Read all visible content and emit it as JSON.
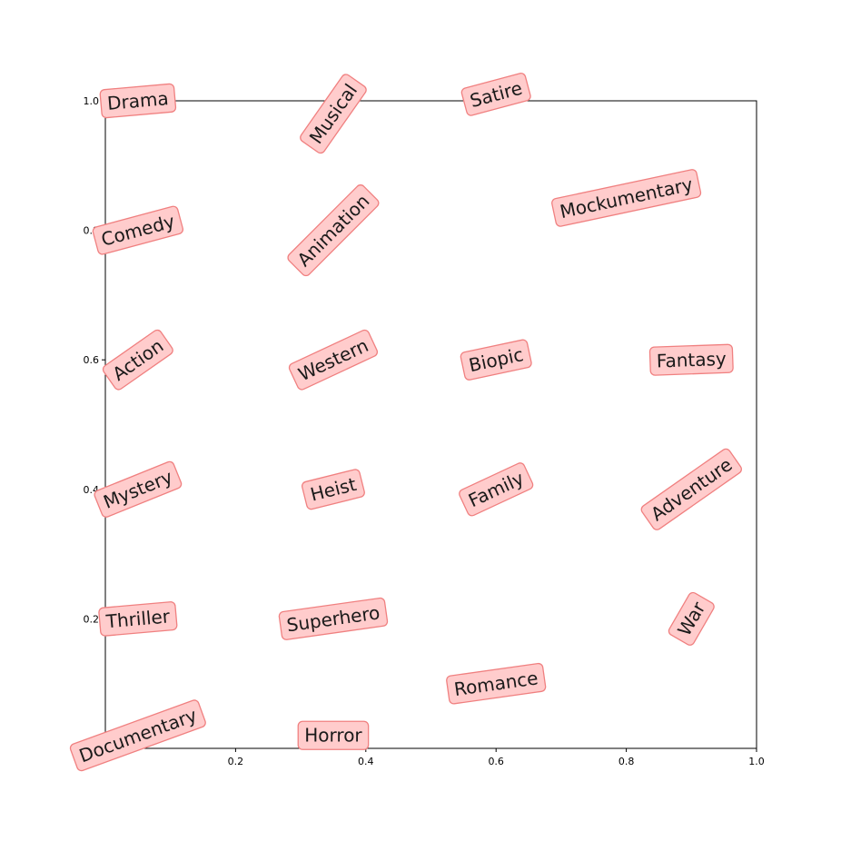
{
  "chart_data": {
    "type": "scatter",
    "title": "",
    "xlabel": "",
    "ylabel": "",
    "xlim": [
      0,
      1
    ],
    "ylim": [
      0,
      1
    ],
    "grid": false,
    "x_ticks": [
      {
        "value": 0.2,
        "label": "0.2"
      },
      {
        "value": 0.4,
        "label": "0.4"
      },
      {
        "value": 0.6,
        "label": "0.6"
      },
      {
        "value": 0.8,
        "label": "0.8"
      },
      {
        "value": 1.0,
        "label": "1.0"
      }
    ],
    "y_ticks": [
      {
        "value": 0.2,
        "label": "0.2"
      },
      {
        "value": 0.4,
        "label": "0.4"
      },
      {
        "value": 0.6,
        "label": "0.6"
      },
      {
        "value": 0.8,
        "label": "0.8"
      },
      {
        "value": 1.0,
        "label": "1.0"
      }
    ],
    "box_fill": "#ffcccc",
    "box_edge": "#f08080",
    "text_color": "#1a1a1a",
    "points": [
      {
        "label": "Drama",
        "x": 0.05,
        "y": 1.0,
        "rotation": 5
      },
      {
        "label": "Musical",
        "x": 0.35,
        "y": 0.98,
        "rotation": 55
      },
      {
        "label": "Satire",
        "x": 0.6,
        "y": 1.01,
        "rotation": 15
      },
      {
        "label": "Comedy",
        "x": 0.05,
        "y": 0.8,
        "rotation": 15
      },
      {
        "label": "Animation",
        "x": 0.35,
        "y": 0.8,
        "rotation": 45
      },
      {
        "label": "Mockumentary",
        "x": 0.8,
        "y": 0.85,
        "rotation": 12
      },
      {
        "label": "Action",
        "x": 0.05,
        "y": 0.6,
        "rotation": 35
      },
      {
        "label": "Western",
        "x": 0.35,
        "y": 0.6,
        "rotation": 25
      },
      {
        "label": "Biopic",
        "x": 0.6,
        "y": 0.6,
        "rotation": 12
      },
      {
        "label": "Fantasy",
        "x": 0.9,
        "y": 0.6,
        "rotation": 2
      },
      {
        "label": "Mystery",
        "x": 0.05,
        "y": 0.4,
        "rotation": 22
      },
      {
        "label": "Heist",
        "x": 0.35,
        "y": 0.4,
        "rotation": 14
      },
      {
        "label": "Family",
        "x": 0.6,
        "y": 0.4,
        "rotation": 25
      },
      {
        "label": "Adventure",
        "x": 0.9,
        "y": 0.4,
        "rotation": 35
      },
      {
        "label": "Thriller",
        "x": 0.05,
        "y": 0.2,
        "rotation": 5
      },
      {
        "label": "Superhero",
        "x": 0.35,
        "y": 0.2,
        "rotation": 8
      },
      {
        "label": "War",
        "x": 0.9,
        "y": 0.2,
        "rotation": 60
      },
      {
        "label": "Romance",
        "x": 0.6,
        "y": 0.1,
        "rotation": 8
      },
      {
        "label": "Documentary",
        "x": 0.05,
        "y": 0.02,
        "rotation": 20
      },
      {
        "label": "Horror",
        "x": 0.35,
        "y": 0.02,
        "rotation": 0
      }
    ]
  }
}
